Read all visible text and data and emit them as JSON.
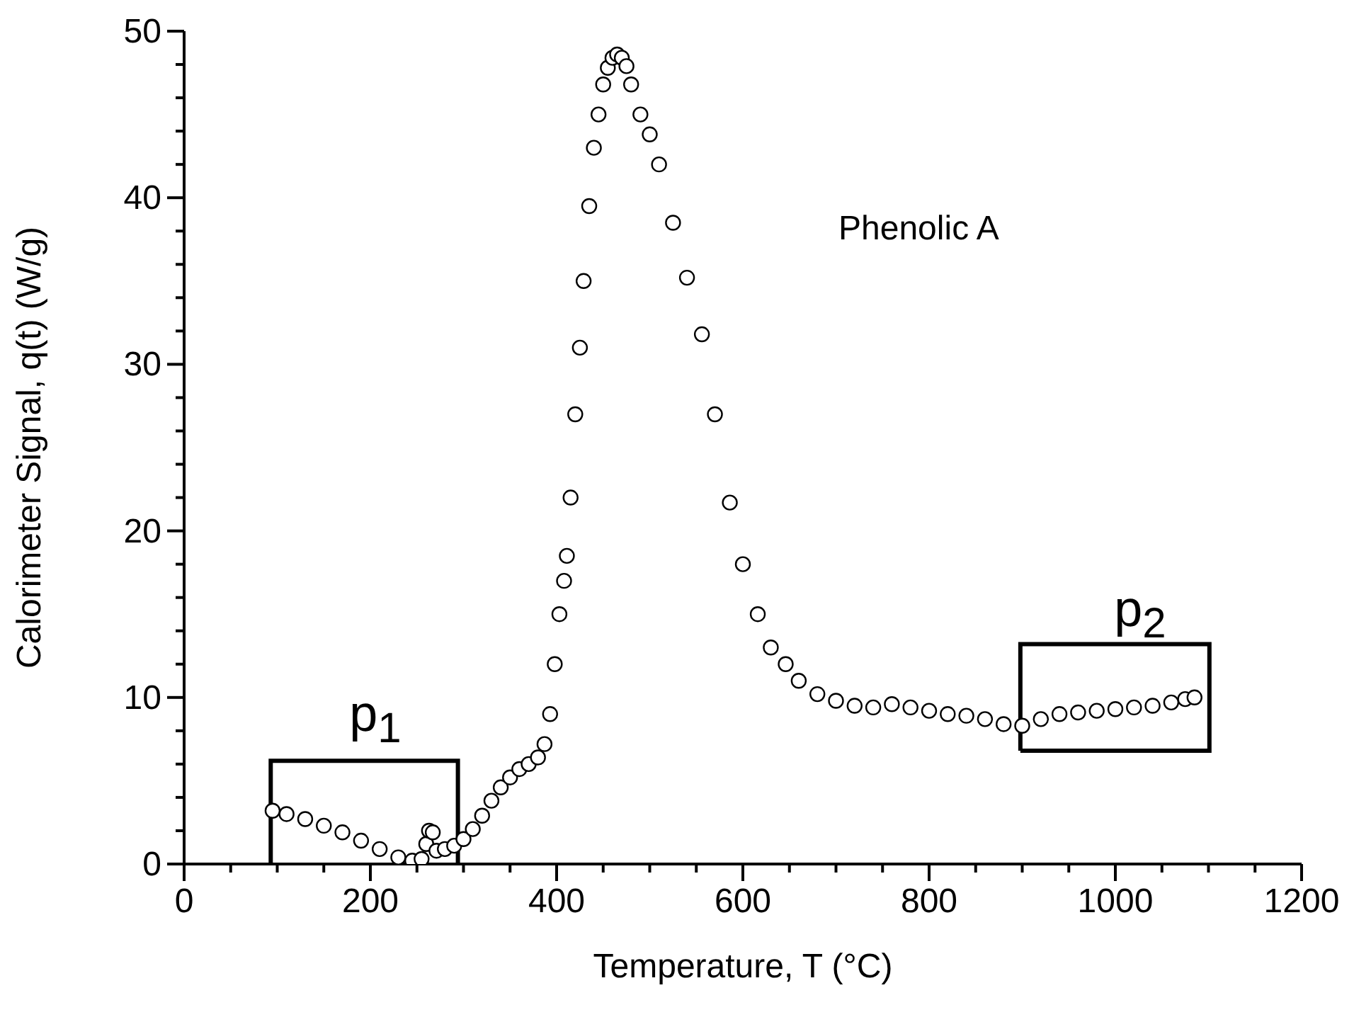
{
  "chart_data": {
    "type": "scatter",
    "xlabel": "Temperature, T (°C)",
    "ylabel": "Calorimeter Signal, q(t) (W/g)",
    "x": [
      95,
      110,
      130,
      150,
      170,
      190,
      210,
      230,
      245,
      255,
      260,
      263,
      267,
      271,
      280,
      290,
      300,
      310,
      320,
      330,
      340,
      350,
      360,
      370,
      380,
      387,
      393,
      398,
      403,
      408,
      411,
      415,
      420,
      425,
      429,
      435,
      440,
      445,
      450,
      455,
      460,
      465,
      470,
      475,
      480,
      490,
      500,
      510,
      525,
      540,
      556,
      570,
      586,
      600,
      616,
      630,
      646,
      660,
      680,
      700,
      720,
      740,
      760,
      780,
      800,
      820,
      840,
      860,
      880,
      900,
      920,
      940,
      960,
      980,
      1000,
      1020,
      1040,
      1060,
      1075,
      1085
    ],
    "series": [
      {
        "color": "#000000",
        "values": [
          3.2,
          3.0,
          2.7,
          2.3,
          1.9,
          1.4,
          0.9,
          0.4,
          0.2,
          0.3,
          1.2,
          2.0,
          1.9,
          0.8,
          0.9,
          1.1,
          1.5,
          2.1,
          2.9,
          3.8,
          4.6,
          5.2,
          5.7,
          6.0,
          6.4,
          7.2,
          9,
          12,
          15,
          17,
          18.5,
          22,
          27,
          31,
          35,
          39.5,
          43,
          45,
          46.8,
          47.8,
          48.4,
          48.6,
          48.4,
          47.9,
          46.8,
          45,
          43.8,
          42,
          38.5,
          35.2,
          31.8,
          27,
          21.7,
          18,
          15,
          13,
          12,
          11,
          10.2,
          9.8,
          9.5,
          9.4,
          9.6,
          9.4,
          9.2,
          9.0,
          8.9,
          8.7,
          8.4,
          8.3,
          8.7,
          9.0,
          9.1,
          9.2,
          9.3,
          9.4,
          9.5,
          9.7,
          9.9,
          10.0
        ]
      }
    ],
    "marker": "circle",
    "xlim": [
      0,
      1200
    ],
    "xticks": [
      0,
      {
        "value": 50,
        "label": null
      },
      {
        "value": 100,
        "label": null
      },
      {
        "value": 150,
        "label": null
      },
      200,
      {
        "value": 250,
        "label": null
      },
      {
        "value": 300,
        "label": null
      },
      {
        "value": 350,
        "label": null
      },
      400,
      {
        "value": 450,
        "label": null
      },
      {
        "value": 500,
        "label": null
      },
      {
        "value": 550,
        "label": null
      },
      600,
      {
        "value": 650,
        "label": null
      },
      {
        "value": 700,
        "label": null
      },
      {
        "value": 750,
        "label": null
      },
      800,
      {
        "value": 850,
        "label": null
      },
      {
        "value": 900,
        "label": null
      },
      {
        "value": 950,
        "label": null
      },
      1000,
      {
        "value": 1050,
        "label": null
      },
      {
        "value": 1100,
        "label": null
      },
      {
        "value": 1150,
        "label": null
      },
      1200
    ],
    "ylim": [
      0,
      50
    ],
    "yticks": [
      0,
      {
        "value": 2,
        "label": null
      },
      {
        "value": 4,
        "label": null
      },
      {
        "value": 6,
        "label": null
      },
      {
        "value": 8,
        "label": null
      },
      10,
      {
        "value": 12,
        "label": null
      },
      {
        "value": 14,
        "label": null
      },
      {
        "value": 16,
        "label": null
      },
      {
        "value": 18,
        "label": null
      },
      20,
      {
        "value": 22,
        "label": null
      },
      {
        "value": 24,
        "label": null
      },
      {
        "value": 26,
        "label": null
      },
      {
        "value": 28,
        "label": null
      },
      30,
      {
        "value": 32,
        "label": null
      },
      {
        "value": 34,
        "label": null
      },
      {
        "value": 36,
        "label": null
      },
      {
        "value": 38,
        "label": null
      },
      40,
      {
        "value": 42,
        "label": null
      },
      {
        "value": 44,
        "label": null
      },
      {
        "value": 46,
        "label": null
      },
      {
        "value": 48,
        "label": null
      },
      50
    ],
    "annotations": [
      "Phenolic A",
      "p$_{1}$",
      "p$_{2}$"
    ]
  }
}
